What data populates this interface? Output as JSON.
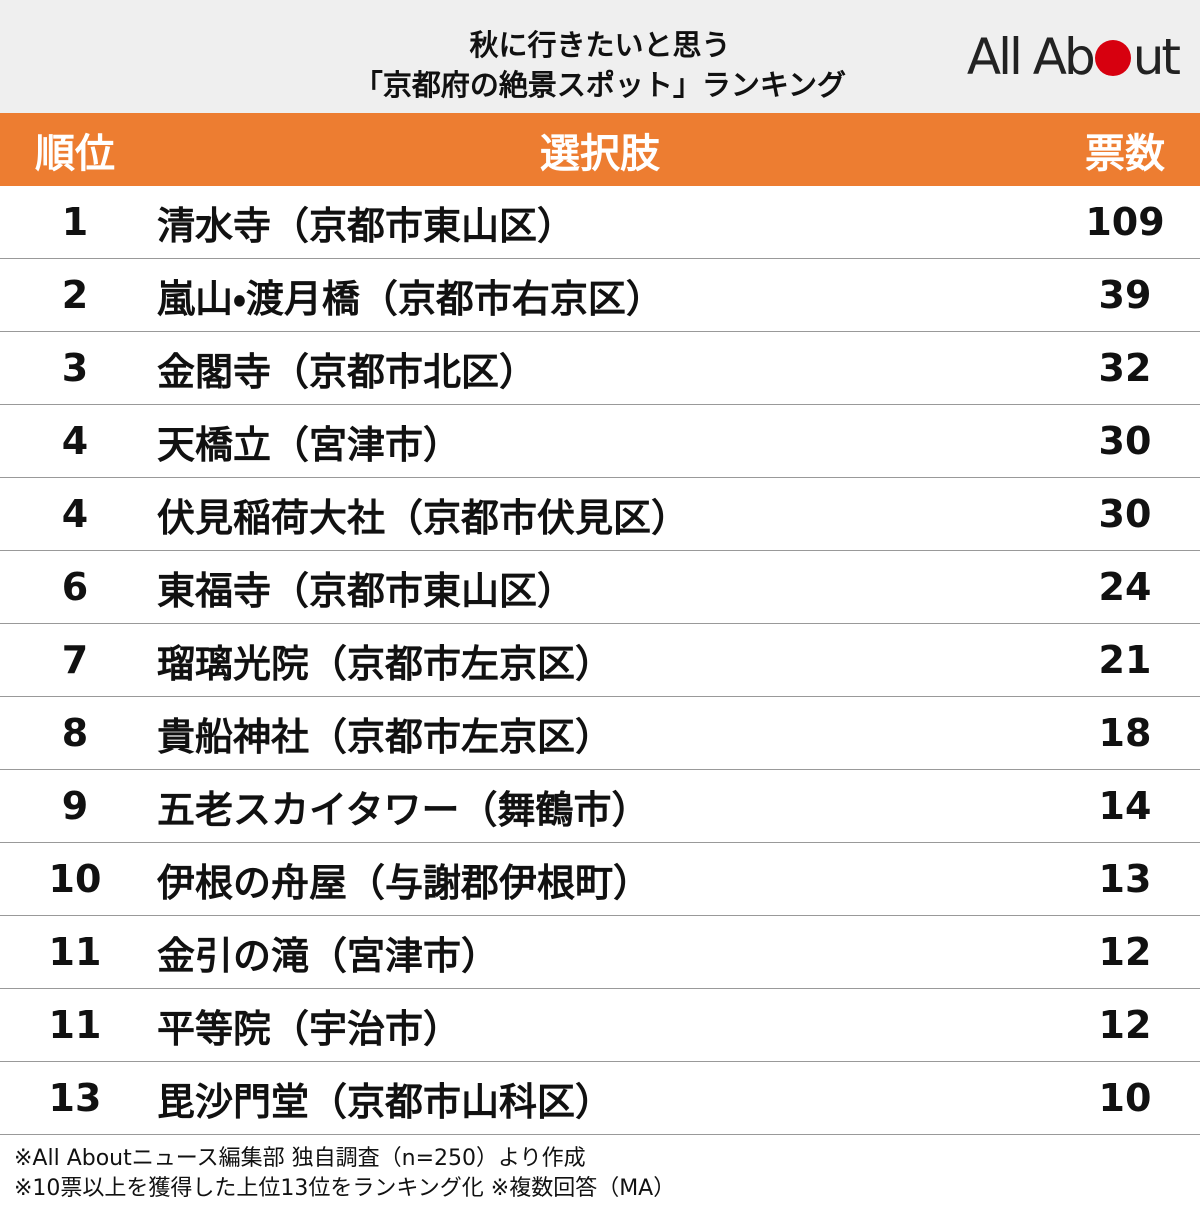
{
  "header": {
    "title_lines": [
      "秋に行きたいと思う",
      "「京都府の絶景スポット」ランキング"
    ],
    "logo": "All About"
  },
  "table": {
    "columns": [
      "順位",
      "選択肢",
      "票数"
    ],
    "rows": [
      [
        1,
        "清水寺（京都市東山区）",
        109
      ],
      [
        2,
        "嵐山・渡月橋（京都市右京区）",
        39
      ],
      [
        3,
        "金閣寺（京都市北区）",
        32
      ],
      [
        4,
        "天橋立（宮津市）",
        30
      ],
      [
        4,
        "伏見稲荷大社（京都市伏見区）",
        30
      ],
      [
        6,
        "東福寺（京都市東山区）",
        24
      ],
      [
        7,
        "瑠璃光院（京都市左京区）",
        21
      ],
      [
        8,
        "貴船神社（京都市左京区）",
        18
      ],
      [
        9,
        "五老スカイタワー（舞鶴市）",
        14
      ],
      [
        10,
        "伊根の舟屋（与謝郡伊根町）",
        13
      ],
      [
        11,
        "金引の滝（宮津市）",
        12
      ],
      [
        11,
        "平等院（宇治市）",
        12
      ],
      [
        13,
        "毘沙門堂（京都市山科区）",
        10
      ]
    ]
  },
  "footnotes": [
    "※All Aboutニュース編集部 独自調査（n=250）より作成",
    "※10票以上を獲得した上位13位をランキング化 ※複数回答（MA）"
  ]
}
